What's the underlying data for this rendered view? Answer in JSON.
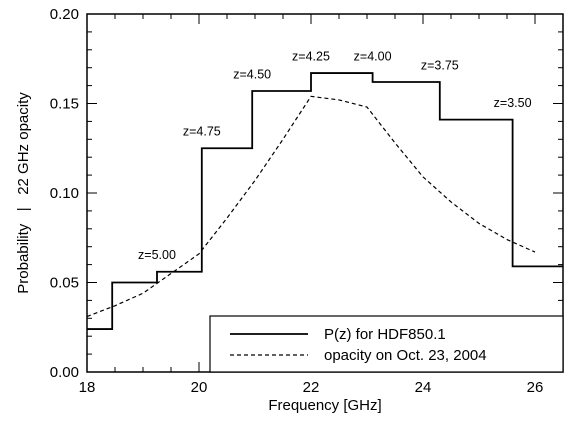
{
  "chart_data": {
    "type": "line",
    "xlabel": "Frequency [GHz]",
    "ylabel": "Probability   |   22 GHz opacity",
    "xlim": [
      18,
      26.5
    ],
    "ylim": [
      0,
      0.2
    ],
    "xticks": [
      18,
      20,
      22,
      24,
      26
    ],
    "xtick_labels": [
      "18",
      "20",
      "22",
      "24",
      "26"
    ],
    "yticks": [
      0.0,
      0.05,
      0.1,
      0.15,
      0.2
    ],
    "ytick_labels": [
      "0.00",
      "0.05",
      "0.10",
      "0.15",
      "0.20"
    ],
    "grid": false,
    "legend_position": "bottom-right",
    "series": [
      {
        "name": "P(z) for HDF850.1",
        "style": "solid-step",
        "color": "#000000",
        "steps": [
          {
            "x0": 18.0,
            "x1": 18.45,
            "y": 0.024
          },
          {
            "x0": 18.45,
            "x1": 19.25,
            "y": 0.05
          },
          {
            "x0": 19.25,
            "x1": 20.05,
            "y": 0.056
          },
          {
            "x0": 20.05,
            "x1": 20.95,
            "y": 0.125
          },
          {
            "x0": 20.95,
            "x1": 22.0,
            "y": 0.157
          },
          {
            "x0": 22.0,
            "x1": 23.1,
            "y": 0.167
          },
          {
            "x0": 23.1,
            "x1": 24.3,
            "y": 0.162
          },
          {
            "x0": 24.3,
            "x1": 25.6,
            "y": 0.141
          },
          {
            "x0": 25.6,
            "x1": 26.5,
            "y": 0.059
          }
        ]
      },
      {
        "name": "opacity on Oct. 23, 2004",
        "style": "dashed",
        "color": "#000000",
        "x": [
          18.0,
          18.5,
          19.0,
          19.5,
          20.0,
          20.5,
          21.0,
          21.5,
          22.0,
          22.5,
          23.0,
          23.5,
          24.0,
          24.5,
          25.0,
          25.5,
          26.0
        ],
        "y": [
          0.031,
          0.037,
          0.044,
          0.055,
          0.066,
          0.086,
          0.107,
          0.13,
          0.154,
          0.152,
          0.148,
          0.128,
          0.109,
          0.095,
          0.083,
          0.074,
          0.067
        ]
      }
    ],
    "annotations": [
      {
        "text": "z=5.00",
        "x": 19.25,
        "y": 0.063
      },
      {
        "text": "z=4.75",
        "x": 20.05,
        "y": 0.132
      },
      {
        "text": "z=4.50",
        "x": 20.95,
        "y": 0.164
      },
      {
        "text": "z=4.25",
        "x": 22.0,
        "y": 0.174
      },
      {
        "text": "z=4.00",
        "x": 23.1,
        "y": 0.174
      },
      {
        "text": "z=3.75",
        "x": 24.3,
        "y": 0.169
      },
      {
        "text": "z=3.50",
        "x": 25.6,
        "y": 0.148
      }
    ]
  }
}
